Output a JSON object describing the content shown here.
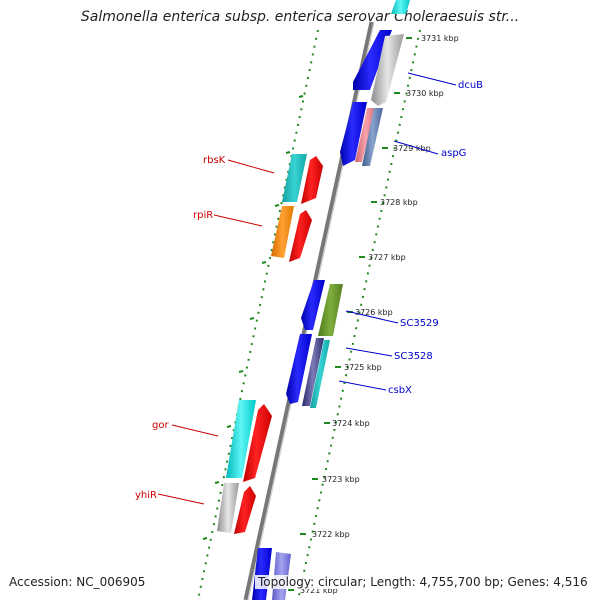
{
  "title": "Salmonella enterica subsp. enterica serovar Choleraesuis str...",
  "footer": {
    "accession": "Accession: NC_006905",
    "topology": "Topology: circular; Length: 4,755,700 bp; Genes: 4,516"
  },
  "colors": {
    "backbone": "#777777",
    "tick": "#1f8a1f",
    "forward_label": "#cc0000",
    "reverse_label": "#0000cc"
  },
  "scale_ticks": [
    {
      "label": "3731 kbp"
    },
    {
      "label": "3730 kbp"
    },
    {
      "label": "3729 kbp"
    },
    {
      "label": "3728 kbp"
    },
    {
      "label": "3727 kbp"
    },
    {
      "label": "3726 kbp"
    },
    {
      "label": "3725 kbp"
    },
    {
      "label": "3724 kbp"
    },
    {
      "label": "3723 kbp"
    },
    {
      "label": "3722 kbp"
    },
    {
      "label": "3721 kbp"
    }
  ],
  "gene_labels": {
    "left": [
      "rbsK",
      "rpiR",
      "gor",
      "yhiR"
    ],
    "right": [
      "dcuB",
      "aspG",
      "SC3529",
      "SC3528",
      "csbX"
    ]
  }
}
